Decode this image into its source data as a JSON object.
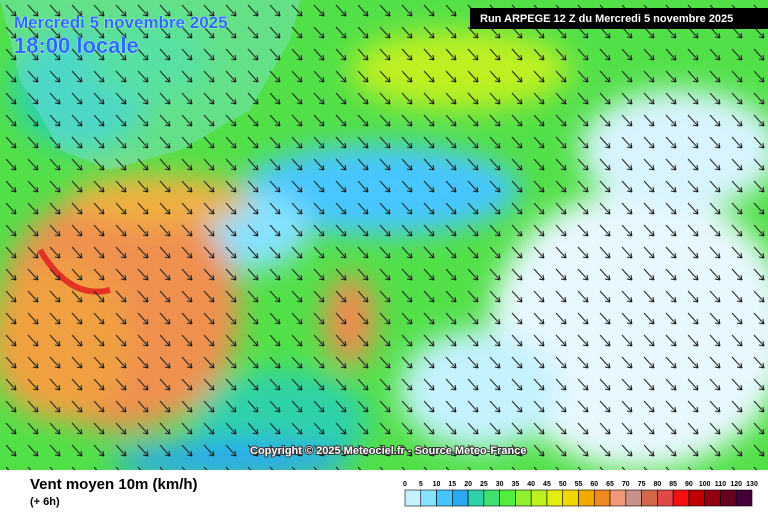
{
  "header": {
    "date": "Mercredi 5 novembre 2025",
    "time": "18:00 locale",
    "run": "Run ARPEGE 12 Z du Mercredi 5 novembre 2025"
  },
  "copyright": "Copyright © 2025 Meteociel.fr - Source Meteo-France",
  "legend": {
    "title": "Vent moyen 10m (km/h)",
    "lead": "(+ 6h)",
    "levels": [
      0,
      5,
      10,
      15,
      20,
      25,
      30,
      35,
      40,
      45,
      50,
      55,
      60,
      65,
      70,
      75,
      80,
      85,
      90,
      100,
      110,
      120,
      130
    ],
    "colors": [
      "#ffffff",
      "#c4f2ff",
      "#86e2ff",
      "#46c6ff",
      "#2aa8f0",
      "#2ed2a8",
      "#3ee070",
      "#52ee3e",
      "#8ef030",
      "#bef020",
      "#e2ee10",
      "#f2d600",
      "#f2aa00",
      "#f08a20",
      "#f09878",
      "#c89088",
      "#d06848",
      "#e04848",
      "#f21010",
      "#c00000",
      "#900010",
      "#660020",
      "#440038"
    ]
  }
}
